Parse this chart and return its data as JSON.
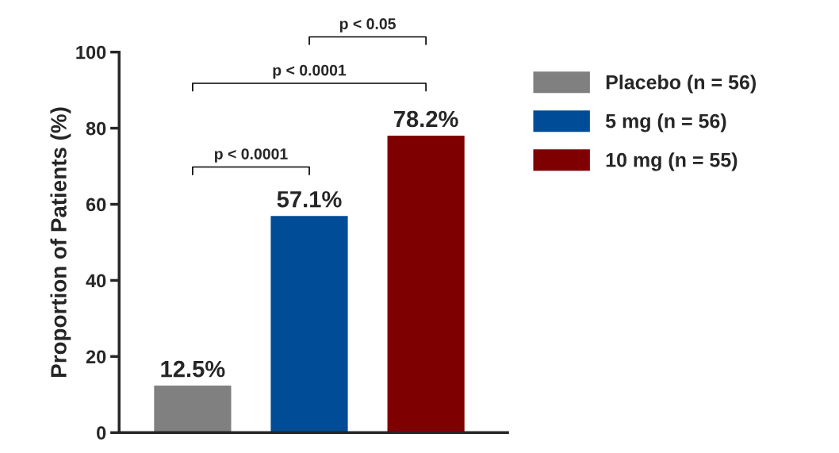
{
  "chart_data": {
    "type": "bar",
    "ylabel": "Proportion of Patients (%)",
    "categories": [
      null,
      null,
      null
    ],
    "series": [
      {
        "name": "Placebo (n = 56)",
        "color": "#808080",
        "values": [
          12.5,
          null,
          null
        ],
        "value_labels": [
          "12.5%",
          null,
          null
        ]
      },
      {
        "name": "5 mg (n = 56)",
        "color": "#004c97",
        "values": [
          null,
          57.1,
          null
        ],
        "value_labels": [
          null,
          "57.1%",
          null
        ]
      },
      {
        "name": "10 mg (n = 55)",
        "color": "#7f0000",
        "values": [
          null,
          null,
          78.2
        ],
        "value_labels": [
          null,
          null,
          "78.2%"
        ]
      }
    ],
    "ylim": [
      0,
      100
    ],
    "yticks": [
      0,
      20,
      40,
      60,
      80,
      100
    ],
    "grid": false,
    "legend": "right",
    "annotations": [
      "p < 0.0001",
      "p < 0.0001",
      "p < 0.05"
    ]
  }
}
